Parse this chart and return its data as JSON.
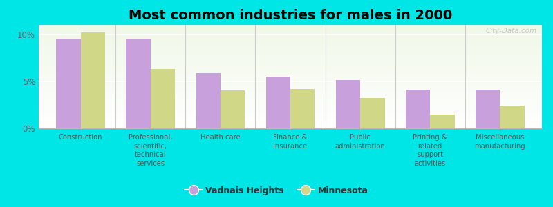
{
  "title": "Most common industries for males in 2000",
  "categories": [
    "Construction",
    "Professional,\nscientific,\ntechnical\nservices",
    "Health care",
    "Finance &\ninsurance",
    "Public\nadministration",
    "Printing &\nrelated\nsupport\nactivities",
    "Miscellaneous\nmanufacturing"
  ],
  "vadnais_heights": [
    9.5,
    9.5,
    5.9,
    5.5,
    5.1,
    4.1,
    4.1
  ],
  "minnesota": [
    10.2,
    6.3,
    4.0,
    4.2,
    3.2,
    1.5,
    2.4
  ],
  "bar_color_vh": "#c8a0dc",
  "bar_color_mn": "#d0d888",
  "background_color": "#00e5e5",
  "ylim": [
    0,
    11
  ],
  "yticks": [
    0,
    5,
    10
  ],
  "ytick_labels": [
    "0%",
    "5%",
    "10%"
  ],
  "legend_vh": "Vadnais Heights",
  "legend_mn": "Minnesota",
  "title_fontsize": 14,
  "watermark": "City-Data.com"
}
